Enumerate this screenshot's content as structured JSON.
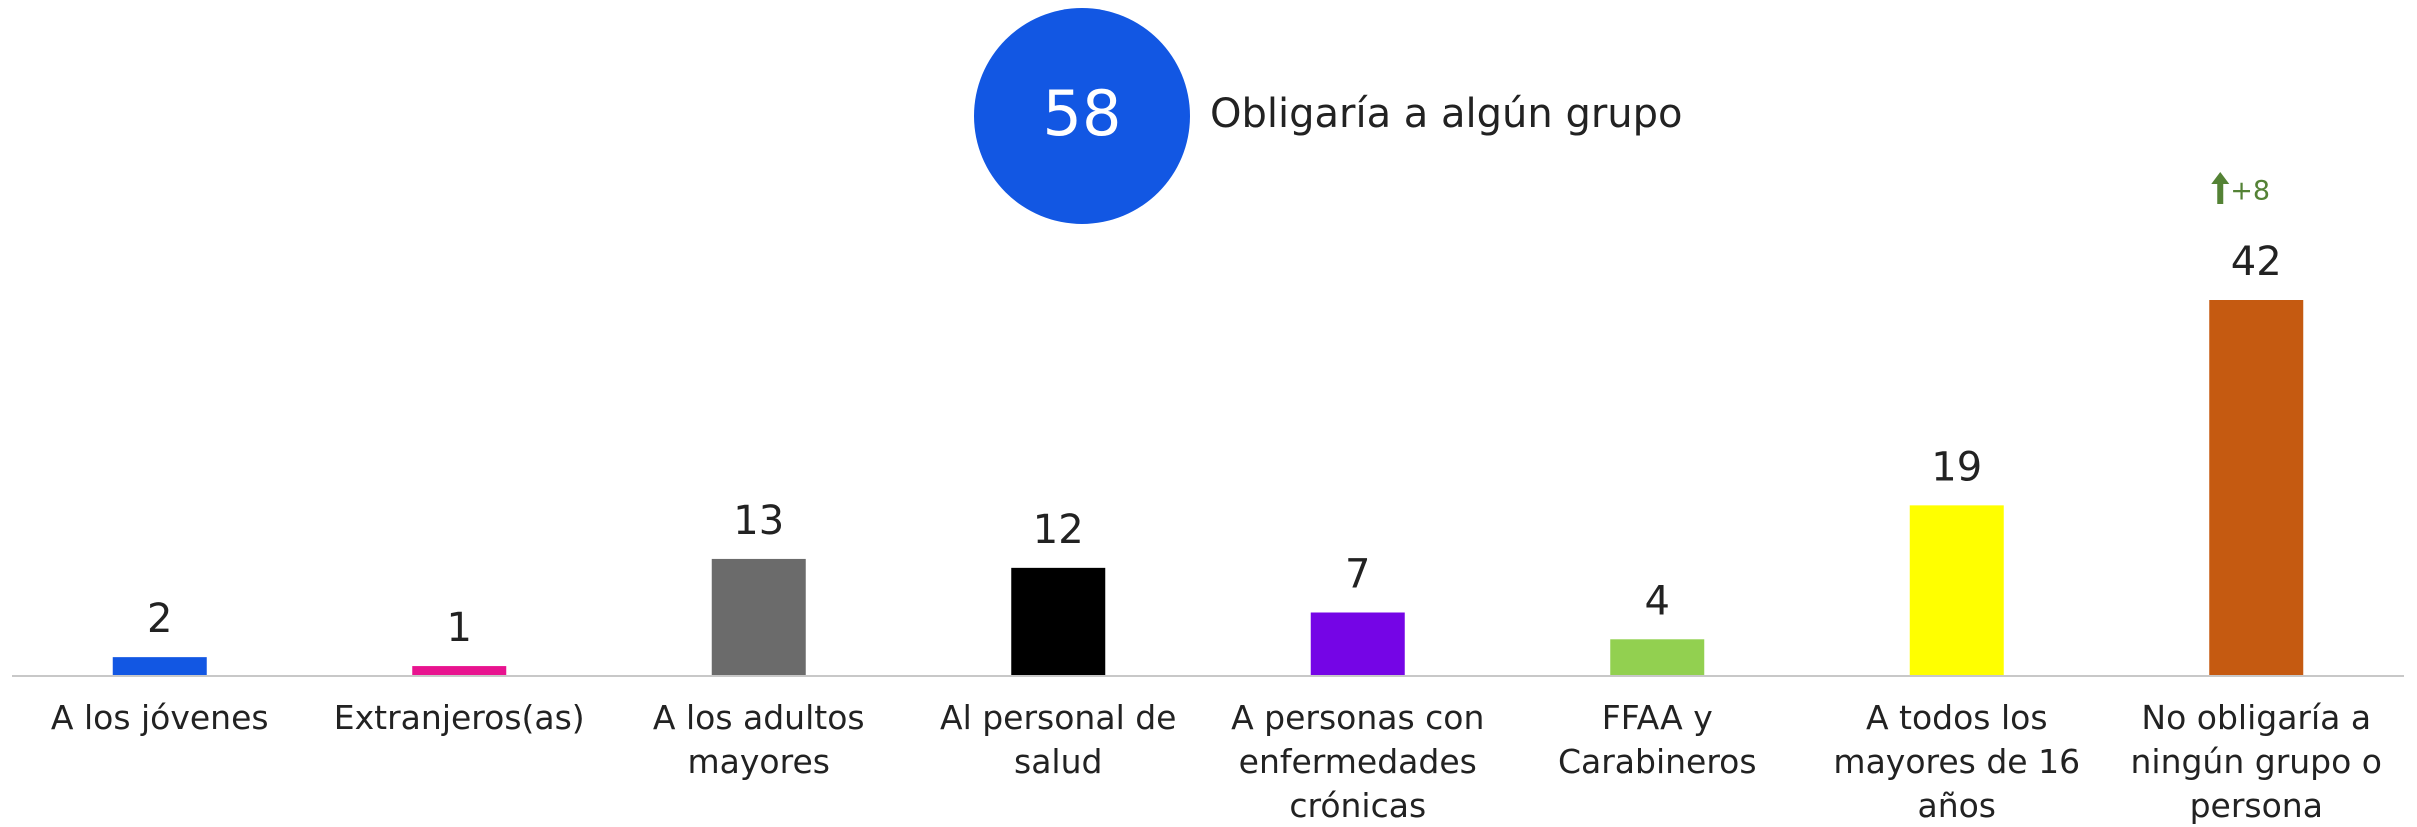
{
  "chart_data": {
    "type": "bar",
    "highlight": {
      "value": 58,
      "label": "Obligaría a algún grupo",
      "color": "#1257e3"
    },
    "categories": [
      "A los jóvenes",
      "Extranjeros(as)",
      "A los adultos mayores",
      "Al personal de salud",
      "A personas con enfermedades crónicas",
      "FFAA y Carabineros",
      "A todos los mayores de 16 años",
      "No obligaría a ningún grupo o persona"
    ],
    "values": [
      2,
      1,
      13,
      12,
      7,
      4,
      19,
      42
    ],
    "colors": [
      "#1257e3",
      "#e8138f",
      "#6b6b6b",
      "#000000",
      "#7505e6",
      "#92d050",
      "#ffff00",
      "#c55a11"
    ],
    "annotation": {
      "value": 8,
      "label": "+8",
      "color": "#548235"
    }
  }
}
